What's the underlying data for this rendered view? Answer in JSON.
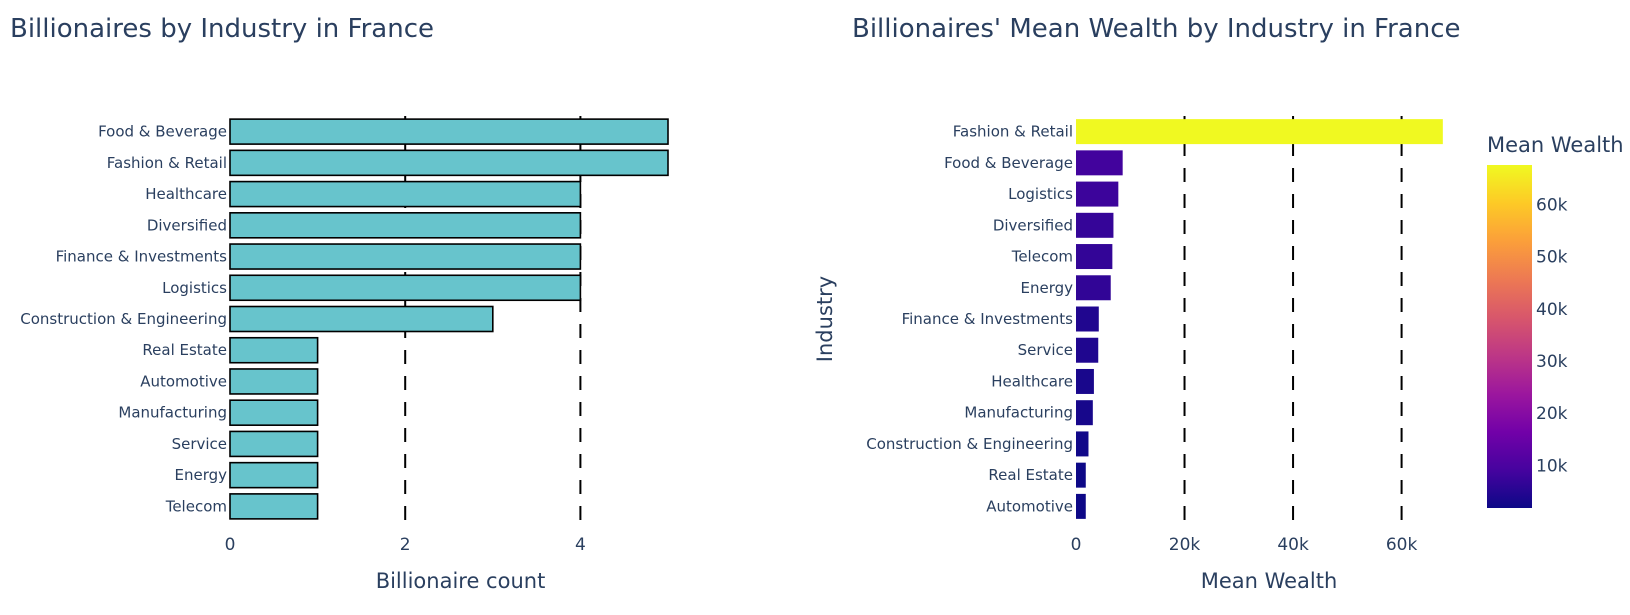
{
  "chart_data": [
    {
      "type": "bar",
      "orientation": "horizontal",
      "title": "Billionaires by Industry in France",
      "xlabel": "Billionaire count",
      "ylabel": "",
      "xlim": [
        0,
        5
      ],
      "xticks": [
        0,
        2,
        4
      ],
      "xtick_labels": [
        "0",
        "2",
        "4"
      ],
      "grid": "vertical dashed",
      "bar_color": "#67c4cc",
      "bar_outline": "#000000",
      "categories": [
        "Food & Beverage",
        "Fashion & Retail",
        "Healthcare",
        "Diversified",
        "Finance & Investments",
        "Logistics",
        "Construction & Engineering",
        "Real Estate",
        "Automotive",
        "Manufacturing",
        "Service",
        "Energy",
        "Telecom"
      ],
      "values": [
        5,
        5,
        4,
        4,
        4,
        4,
        3,
        1,
        1,
        1,
        1,
        1,
        1
      ]
    },
    {
      "type": "bar",
      "orientation": "horizontal",
      "title": "Billionaires' Mean Wealth by Industry in France",
      "xlabel": "Mean Wealth",
      "ylabel": "Industry",
      "xlim": [
        0,
        68000
      ],
      "xticks": [
        0,
        20000,
        40000,
        60000
      ],
      "xtick_labels": [
        "0",
        "20k",
        "40k",
        "60k"
      ],
      "grid": "vertical dashed",
      "colorscale": "Plasma",
      "colorbar": {
        "title": "Mean Wealth",
        "range": [
          1800,
          67600
        ],
        "ticks": [
          10000,
          20000,
          30000,
          40000,
          50000,
          60000
        ],
        "tick_labels": [
          "10k",
          "20k",
          "30k",
          "40k",
          "50k",
          "60k"
        ]
      },
      "categories": [
        "Fashion & Retail",
        "Food & Beverage",
        "Logistics",
        "Diversified",
        "Telecom",
        "Energy",
        "Finance & Investments",
        "Service",
        "Healthcare",
        "Manufacturing",
        "Construction & Engineering",
        "Real Estate",
        "Automotive"
      ],
      "values": [
        67600,
        8600,
        7800,
        6900,
        6700,
        6400,
        4200,
        4100,
        3300,
        3100,
        2300,
        1800,
        1800
      ]
    }
  ]
}
